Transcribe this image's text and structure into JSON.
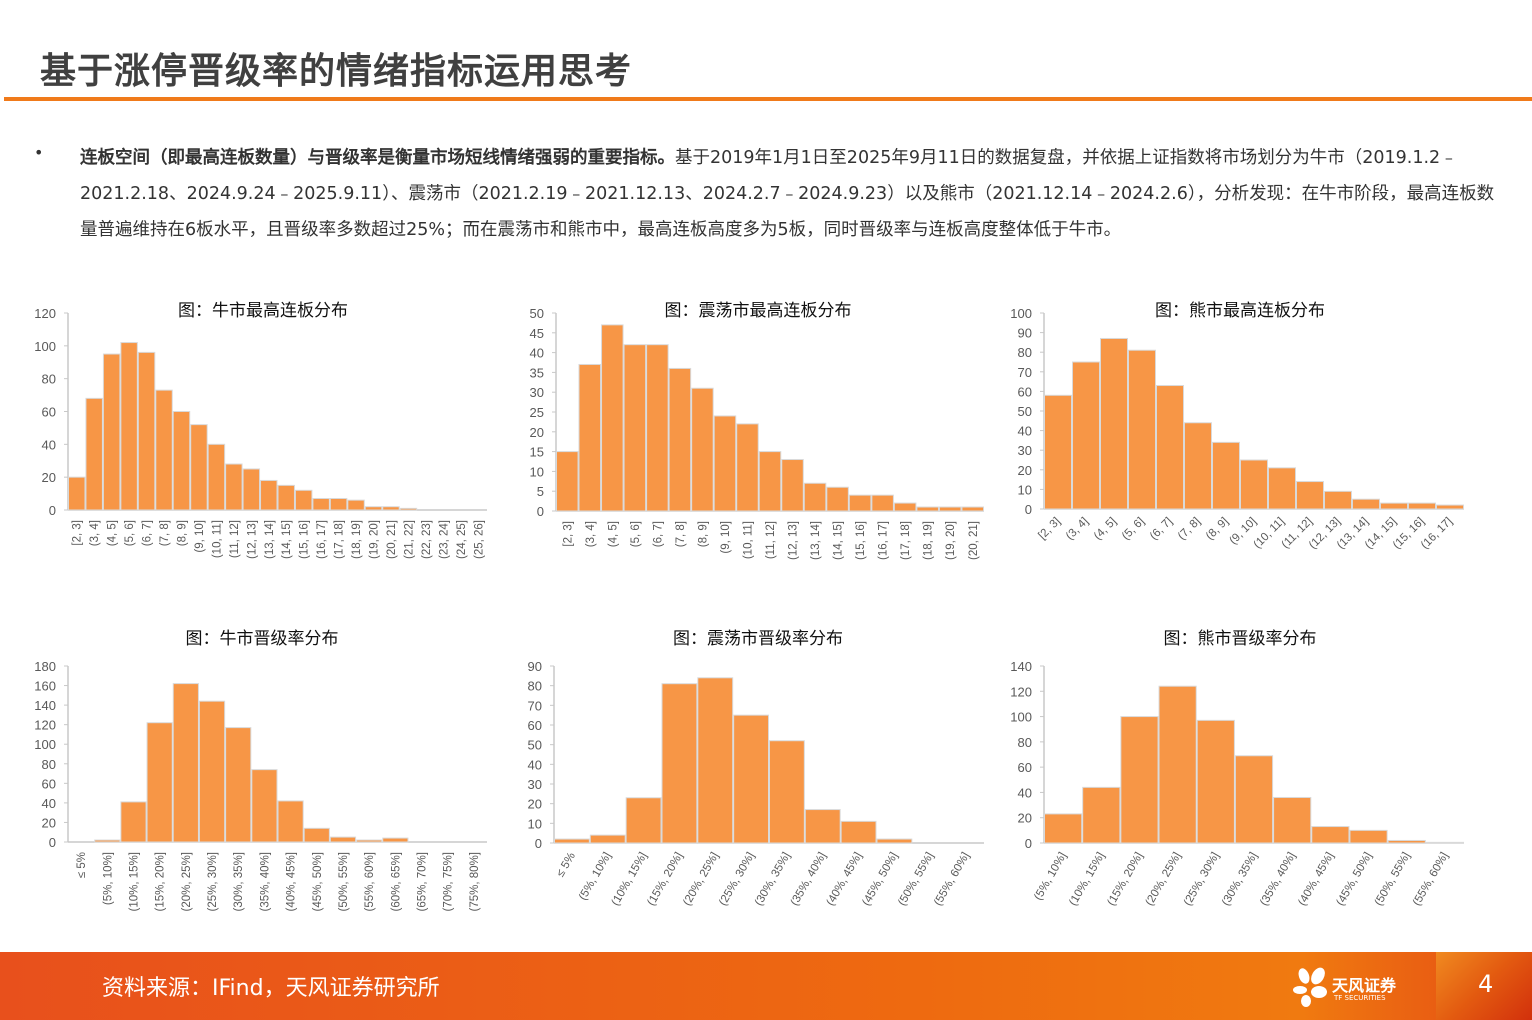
{
  "header": {
    "title": "基于涨停晋级率的情绪指标运用思考"
  },
  "body": {
    "bullet": "•",
    "bold_lead": "连板空间（即最高连板数量）与晋级率是衡量市场短线情绪强弱的重要指标。",
    "text": "基于2019年1月1日至2025年9月11日的数据复盘，并依据上证指数将市场划分为牛市（2019.1.2﹣2021.2.18、2024.9.24﹣2025.9.11）、震荡市（2021.2.19﹣2021.12.13、2024.2.7﹣2024.9.23）以及熊市（2021.12.14﹣2024.2.6），分析发现：在牛市阶段，最高连板数量普遍维持在6板水平，且晋级率多数超过25%；而在震荡市和熊市中，最高连板高度多为5板，同时晋级率与连板高度整体低于牛市。"
  },
  "colors": {
    "bar": "#f79646",
    "bar_border": "#d9d9d9",
    "accent": "#f07a1a",
    "axis_text": "#595959"
  },
  "chart_data": [
    {
      "type": "bar",
      "title": "图：牛市最高连板分布",
      "ylim": [
        0,
        120
      ],
      "ytick_step": 20,
      "categories": [
        "[2, 3]",
        "(3, 4]",
        "(4, 5]",
        "(5, 6]",
        "(6, 7]",
        "(7, 8]",
        "(8, 9]",
        "(9, 10]",
        "(10, 11]",
        "(11, 12]",
        "(12, 13]",
        "(13, 14]",
        "(14, 15]",
        "(15, 16]",
        "(16, 17]",
        "(17, 18]",
        "(18, 19]",
        "(19, 20]",
        "(20, 21]",
        "(21, 22]",
        "(22, 23]",
        "(23, 24]",
        "(24, 25]",
        "(25, 26]"
      ],
      "values": [
        20,
        68,
        95,
        102,
        96,
        73,
        60,
        52,
        40,
        28,
        25,
        18,
        15,
        12,
        7,
        7,
        6,
        2,
        2,
        1,
        0,
        0,
        0,
        0
      ]
    },
    {
      "type": "bar",
      "title": "图：震荡市最高连板分布",
      "ylim": [
        0,
        50
      ],
      "ytick_step": 5,
      "categories": [
        "[2, 3]",
        "(3, 4]",
        "(4, 5]",
        "(5, 6]",
        "(6, 7]",
        "(7, 8]",
        "(8, 9]",
        "(9, 10]",
        "(10, 11]",
        "(11, 12]",
        "(12, 13]",
        "(13, 14]",
        "(14, 15]",
        "(15, 16]",
        "(16, 17]",
        "(17, 18]",
        "(18, 19]",
        "(19, 20]",
        "(20, 21]"
      ],
      "values": [
        15,
        37,
        47,
        42,
        42,
        36,
        31,
        24,
        22,
        15,
        13,
        7,
        6,
        4,
        4,
        2,
        1,
        1,
        1
      ]
    },
    {
      "type": "bar",
      "title": "图：熊市最高连板分布",
      "ylim": [
        0,
        100
      ],
      "ytick_step": 10,
      "categories": [
        "[2, 3]",
        "(3, 4]",
        "(4, 5]",
        "(5, 6]",
        "(6, 7]",
        "(7, 8]",
        "(8, 9]",
        "(9, 10]",
        "(10, 11]",
        "(11, 12]",
        "(12, 13]",
        "(13, 14]",
        "(14, 15]",
        "(15, 16]",
        "(16, 17]"
      ],
      "values": [
        58,
        75,
        87,
        81,
        63,
        44,
        34,
        25,
        21,
        14,
        9,
        5,
        3,
        3,
        2
      ]
    },
    {
      "type": "bar",
      "title": "图：牛市晋级率分布",
      "ylim": [
        0,
        180
      ],
      "ytick_step": 20,
      "categories": [
        "≤ 5%",
        "(5%, 10%]",
        "(10%, 15%]",
        "(15%, 20%]",
        "(20%, 25%]",
        "(25%, 30%]",
        "(30%, 35%]",
        "(35%, 40%]",
        "(40%, 45%]",
        "(45%, 50%]",
        "(50%, 55%]",
        "(55%, 60%]",
        "(60%, 65%]",
        "(65%, 70%]",
        "(70%, 75%]",
        "(75%, 80%]"
      ],
      "values": [
        0,
        2,
        41,
        122,
        162,
        144,
        117,
        74,
        42,
        14,
        5,
        2,
        4,
        0,
        0,
        0
      ]
    },
    {
      "type": "bar",
      "title": "图：震荡市晋级率分布",
      "ylim": [
        0,
        90
      ],
      "ytick_step": 10,
      "categories": [
        "≤ 5%",
        "(5%, 10%]",
        "(10%, 15%]",
        "(15%, 20%]",
        "(20%, 25%]",
        "(25%, 30%]",
        "(30%, 35%]",
        "(35%, 40%]",
        "(40%, 45%]",
        "(45%, 50%]",
        "(50%, 55%]",
        "(55%, 60%]"
      ],
      "values": [
        2,
        4,
        23,
        81,
        84,
        65,
        52,
        17,
        11,
        2,
        0,
        0
      ]
    },
    {
      "type": "bar",
      "title": "图：熊市晋级率分布",
      "ylim": [
        0,
        140
      ],
      "ytick_step": 20,
      "categories": [
        "(5%, 10%]",
        "(10%, 15%]",
        "(15%, 20%]",
        "(20%, 25%]",
        "(25%, 30%]",
        "(30%, 35%]",
        "(35%, 40%]",
        "(40%, 45%]",
        "(45%, 50%]",
        "(50%, 55%]",
        "(55%, 60%]"
      ],
      "values": [
        23,
        44,
        100,
        124,
        97,
        69,
        36,
        13,
        10,
        2,
        0.5
      ]
    }
  ],
  "footer": {
    "source": "资料来源：IFind，天风证券研究所",
    "logo_cn": "天风证券",
    "logo_en": "TF SECURITIES",
    "page": "4"
  }
}
